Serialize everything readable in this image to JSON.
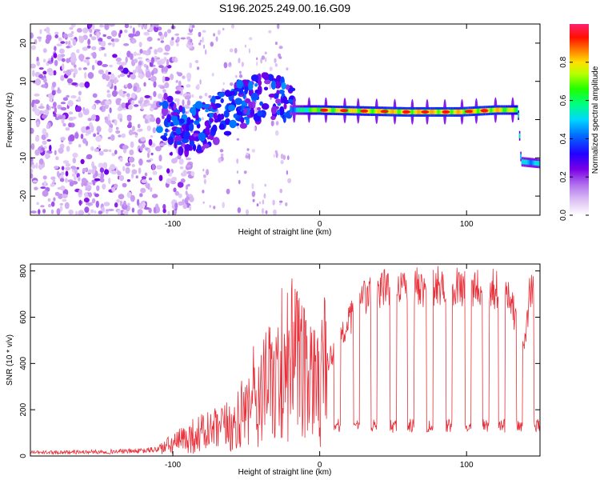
{
  "title": "S196.2025.249.00.16.G09",
  "chart_data": [
    {
      "type": "heatmap",
      "name": "spectrogram",
      "title": "S196.2025.249.00.16.G09",
      "xlabel": "Height of straight line (km)",
      "ylabel": "Frequency (Hz)",
      "xlim": [
        -197,
        150
      ],
      "ylim": [
        -25,
        25
      ],
      "xticks": [
        -100,
        0,
        100
      ],
      "yticks": [
        20,
        10,
        0,
        -10,
        -20
      ],
      "xticklabels": [
        "-100",
        "0",
        "100"
      ],
      "yticklabels": [
        "20",
        "10",
        "0",
        "-10",
        "-20"
      ],
      "colorbar": {
        "label": "Normalized spectral amplitude",
        "range": [
          0,
          1
        ],
        "ticks": [
          "0.0",
          "0.2",
          "0.4",
          "0.6",
          "0.8"
        ],
        "colors": [
          "#ffffff",
          "#cc66ff",
          "#7a00e6",
          "#0000ff",
          "#00e0ff",
          "#00ff00",
          "#ffff00",
          "#ff6600",
          "#ff0000",
          "#ff1e6e"
        ]
      },
      "ridge": [
        {
          "x": -197,
          "f": 0,
          "a": 0.1
        },
        {
          "x": -108,
          "f": 1.5,
          "a": 0.3
        },
        {
          "x": -95,
          "f": -3,
          "a": 0.35
        },
        {
          "x": -80,
          "f": -2,
          "a": 0.3
        },
        {
          "x": -60,
          "f": 3,
          "a": 0.3
        },
        {
          "x": -40,
          "f": 6,
          "a": 0.35
        },
        {
          "x": -22,
          "f": 6,
          "a": 0.35
        },
        {
          "x": -20,
          "f": 2.5,
          "a": 0.45
        },
        {
          "x": 0,
          "f": 2.5,
          "a": 0.75
        },
        {
          "x": 60,
          "f": 2,
          "a": 0.8
        },
        {
          "x": 95,
          "f": 2,
          "a": 0.8
        },
        {
          "x": 120,
          "f": 2.5,
          "a": 0.8
        },
        {
          "x": 135,
          "f": 2.5,
          "a": 0.7
        },
        {
          "x": 137,
          "f": -11,
          "a": 0.5
        },
        {
          "x": 150,
          "f": -11.5,
          "a": 0.5
        }
      ]
    },
    {
      "type": "line",
      "name": "snr",
      "xlabel": "Height of straight line (km)",
      "ylabel": "SNR (10 * v/v)",
      "xlim": [
        -197,
        150
      ],
      "ylim": [
        0,
        830
      ],
      "xticks": [
        -100,
        0,
        100
      ],
      "yticks": [
        0,
        200,
        400,
        600,
        800
      ],
      "xticklabels": [
        "-100",
        "0",
        "100"
      ],
      "yticklabels": [
        "0",
        "200",
        "400",
        "600",
        "800"
      ],
      "color": "#e8303a",
      "series": [
        {
          "name": "SNR",
          "x": [
            -197,
            -150,
            -120,
            -110,
            -100,
            -90,
            -80,
            -70,
            -60,
            -50,
            -45,
            -40,
            -35,
            -30,
            -25,
            -22,
            -20,
            -18,
            -15,
            -10,
            -5,
            0,
            5,
            10,
            15,
            20,
            25,
            30,
            35,
            40,
            50,
            60,
            70,
            80,
            90,
            100,
            110,
            120,
            125,
            130,
            135,
            140,
            143,
            146,
            150
          ],
          "y": [
            15,
            18,
            22,
            30,
            50,
            80,
            100,
            110,
            130,
            170,
            220,
            260,
            300,
            320,
            360,
            420,
            500,
            400,
            380,
            330,
            290,
            330,
            400,
            460,
            520,
            580,
            640,
            680,
            700,
            720,
            730,
            740,
            730,
            735,
            740,
            730,
            735,
            720,
            700,
            660,
            560,
            500,
            700,
            720,
            700
          ]
        }
      ],
      "dropouts": [
        -2,
        12,
        25,
        37,
        50,
        62,
        75,
        88,
        101,
        113,
        124,
        136,
        148
      ]
    }
  ]
}
